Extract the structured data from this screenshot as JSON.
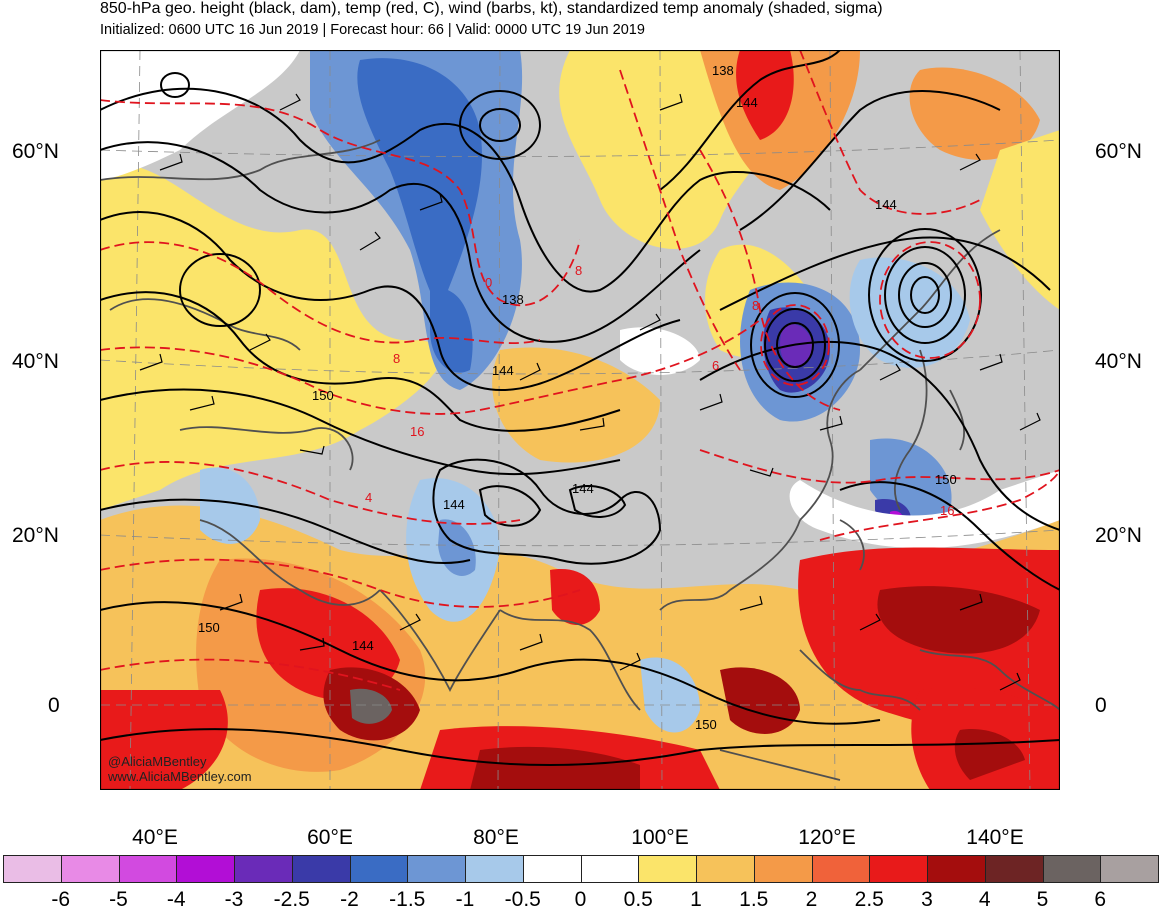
{
  "header": {
    "title": "850-hPa geo. height (black, dam), temp (red, C), wind (barbs, kt), standardized temp anomaly (shaded, sigma)",
    "subtitle": "Initialized: 0600 UTC 16 Jun 2019 | Forecast hour: 66 | Valid: 0000 UTC 19 Jun 2019"
  },
  "map": {
    "lat_labels": [
      "60°N",
      "40°N",
      "20°N",
      "0"
    ],
    "lon_labels": [
      "40°E",
      "60°E",
      "80°E",
      "100°E",
      "120°E",
      "140°E"
    ],
    "height_contour_labels": [
      "138",
      "144",
      "144",
      "138",
      "144",
      "150",
      "144",
      "144",
      "150",
      "150",
      "144",
      "150"
    ],
    "temp_contour_labels": [
      "8",
      "0",
      "8",
      "6",
      "8",
      "16",
      "4",
      "16"
    ],
    "credit_handle": "@AliciaMBentley",
    "credit_site": "www.AliciaMBentley.com",
    "colors": {
      "height_contour": "#000000",
      "temp_contour": "#e0141e",
      "coastline": "#505050"
    }
  },
  "colorbar": {
    "tick_labels": [
      "-6",
      "-5",
      "-4",
      "-3",
      "-2.5",
      "-2",
      "-1.5",
      "-1",
      "-0.5",
      "0",
      "0.5",
      "1",
      "1.5",
      "2",
      "2.5",
      "3",
      "4",
      "5",
      "6"
    ],
    "colors": [
      "#eabde6",
      "#e88ae6",
      "#d24ae0",
      "#b20ed6",
      "#6a2bb8",
      "#3a3aa8",
      "#3a6cc4",
      "#6d96d4",
      "#a7c9ea",
      "#ffffff",
      "#ffffff",
      "#fbe46a",
      "#f6c25a",
      "#f49a48",
      "#f0623a",
      "#e81a1a",
      "#a40d0d",
      "#6d2424",
      "#6b6361",
      "#a8a0a0"
    ]
  }
}
